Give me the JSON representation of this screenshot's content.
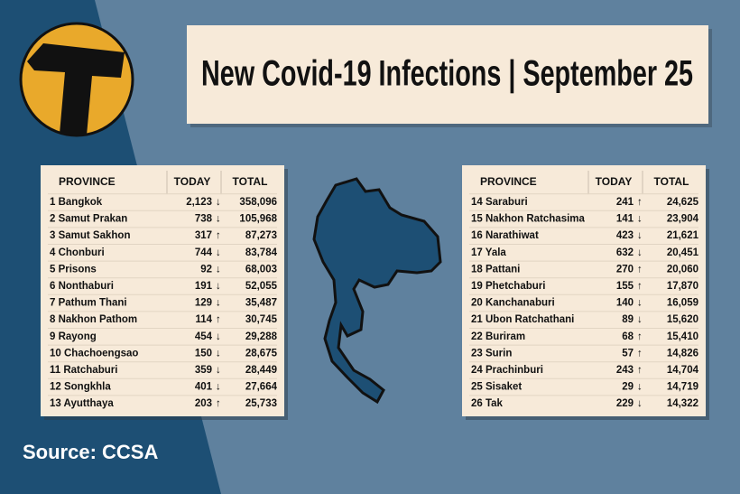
{
  "title": "New Covid-19 Infections | September 25",
  "source": "Source: CCSA",
  "tables": [
    {
      "headers": [
        "PROVINCE",
        "TODAY",
        "TOTAL"
      ],
      "rows": [
        [
          "1 Bangkok",
          "2,123",
          "↓",
          "358,096"
        ],
        [
          "2 Samut Prakan",
          "738",
          "↓",
          "105,968"
        ],
        [
          "3 Samut Sakhon",
          "317",
          "↑",
          "87,273"
        ],
        [
          "4 Chonburi",
          "744",
          "↓",
          "83,784"
        ],
        [
          "5 Prisons",
          "92",
          "↓",
          "68,003"
        ],
        [
          "6 Nonthaburi",
          "191",
          "↓",
          "52,055"
        ],
        [
          "7 Pathum Thani",
          "129",
          "↓",
          "35,487"
        ],
        [
          "8 Nakhon Pathom",
          "114",
          "↑",
          "30,745"
        ],
        [
          "9 Rayong",
          "454",
          "↓",
          "29,288"
        ],
        [
          "10 Chachoengsao",
          "150",
          "↓",
          "28,675"
        ],
        [
          "11 Ratchaburi",
          "359",
          "↓",
          "28,449"
        ],
        [
          "12 Songkhla",
          "401",
          "↓",
          "27,664"
        ],
        [
          "13 Ayutthaya",
          "203",
          "↑",
          "25,733"
        ]
      ]
    },
    {
      "headers": [
        "PROVINCE",
        "TODAY",
        "TOTAL"
      ],
      "rows": [
        [
          "14 Saraburi",
          "241",
          "↑",
          "24,625"
        ],
        [
          "15 Nakhon Ratchasima",
          "141",
          "↓",
          "23,904"
        ],
        [
          "16 Narathiwat",
          "423",
          "↓",
          "21,621"
        ],
        [
          "17 Yala",
          "632",
          "↓",
          "20,451"
        ],
        [
          "18 Pattani",
          "270",
          "↑",
          "20,060"
        ],
        [
          "19 Phetchaburi",
          "155",
          "↑",
          "17,870"
        ],
        [
          "20 Kanchanaburi",
          "140",
          "↓",
          "16,059"
        ],
        [
          "21 Ubon Ratchathani",
          "89",
          "↓",
          "15,620"
        ],
        [
          "22 Buriram",
          "68",
          "↑",
          "15,410"
        ],
        [
          "23 Surin",
          "57",
          "↑",
          "14,826"
        ],
        [
          "24 Prachinburi",
          "243",
          "↑",
          "14,704"
        ],
        [
          "25 Sisaket",
          "29",
          "↓",
          "14,719"
        ],
        [
          "26 Tak",
          "229",
          "↓",
          "14,322"
        ]
      ]
    }
  ]
}
